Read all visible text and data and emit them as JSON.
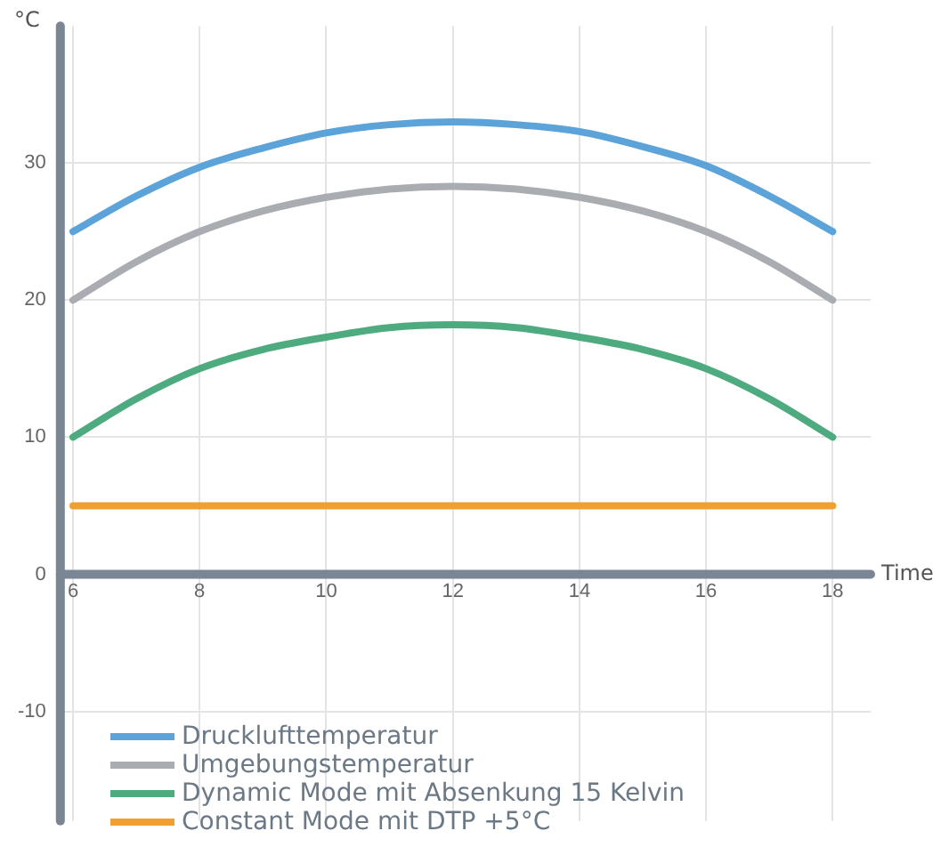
{
  "chart_data": {
    "type": "line",
    "xlabel": "Time",
    "ylabel": "°C",
    "x": [
      6,
      7,
      8,
      9,
      10,
      11,
      12,
      13,
      14,
      15,
      16,
      17,
      18
    ],
    "series": [
      {
        "name": "Drucklufttemperatur",
        "color": "#5ba3d9",
        "values": [
          25,
          27.6,
          29.7,
          31.1,
          32.2,
          32.8,
          33,
          32.8,
          32.3,
          31.2,
          29.8,
          27.6,
          25
        ]
      },
      {
        "name": "Umgebungstemperatur",
        "color": "#a9adb2",
        "values": [
          20,
          22.8,
          25,
          26.5,
          27.5,
          28.1,
          28.3,
          28.1,
          27.5,
          26.5,
          25,
          22.8,
          20
        ]
      },
      {
        "name": "Dynamic Mode mit Absenkung 15 Kelvin",
        "color": "#4dab7f",
        "values": [
          10,
          12.8,
          15,
          16.4,
          17.3,
          18,
          18.2,
          18,
          17.3,
          16.4,
          15,
          12.8,
          10
        ]
      },
      {
        "name": "Constant Mode mit DTP +5°C",
        "color": "#f0a030",
        "values": [
          5,
          5,
          5,
          5,
          5,
          5,
          5,
          5,
          5,
          5,
          5,
          5,
          5
        ]
      }
    ],
    "xlim": [
      5.8,
      18.6
    ],
    "xticks": [
      6,
      8,
      10,
      12,
      14,
      16,
      18
    ],
    "ylim": [
      -18,
      40
    ],
    "yticks": [
      -10,
      0,
      10,
      20,
      30
    ],
    "grid": true,
    "legend": "bottom left",
    "marker": "none",
    "line_style": "solid"
  }
}
